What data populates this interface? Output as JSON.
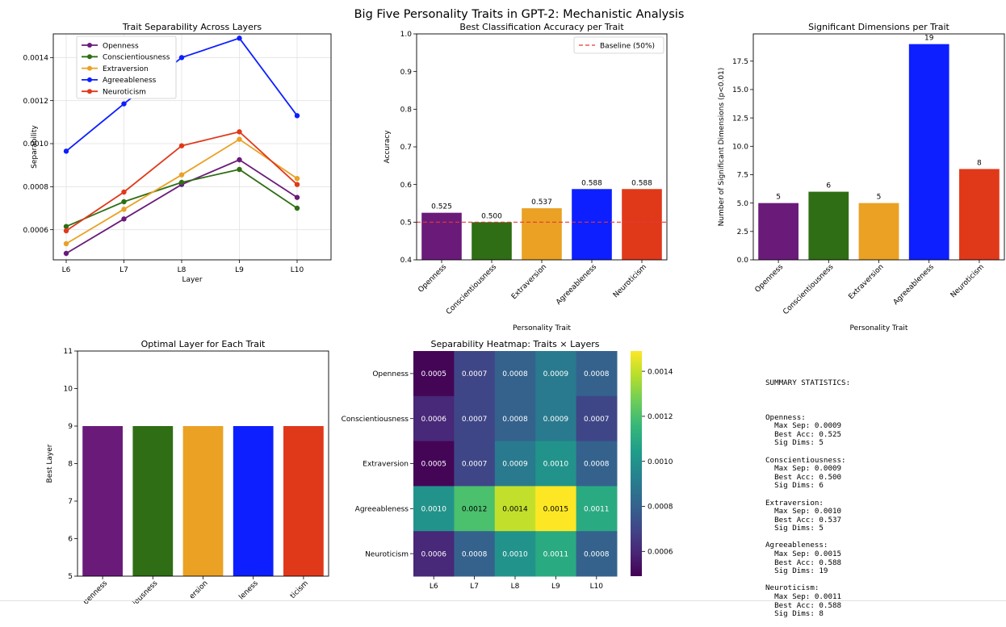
{
  "figure_title": "Big Five Personality Traits in GPT-2: Mechanistic Analysis",
  "traits": [
    "Openness",
    "Conscientiousness",
    "Extraversion",
    "Agreeableness",
    "Neuroticism"
  ],
  "colors": {
    "Openness": "#6a1b7a",
    "Conscientiousness": "#2f6e14",
    "Extraversion": "#eaa124",
    "Agreeableness": "#0d1fff",
    "Neuroticism": "#e0391a"
  },
  "chart_data": [
    {
      "id": "separability",
      "type": "line",
      "title": "Trait Separability Across Layers",
      "xlabel": "Layer",
      "ylabel": "Separability",
      "x": [
        "L6",
        "L7",
        "L8",
        "L9",
        "L10"
      ],
      "ylim": [
        0.00046,
        0.00151
      ],
      "yticks": [
        "0.0006",
        "0.0008",
        "0.0010",
        "0.0012",
        "0.0014"
      ],
      "legend": "top-left",
      "grid": true,
      "series": [
        {
          "name": "Openness",
          "values": [
            0.00049,
            0.00065,
            0.00081,
            0.000925,
            0.00075
          ]
        },
        {
          "name": "Conscientiousness",
          "values": [
            0.000615,
            0.00073,
            0.00082,
            0.00088,
            0.0007
          ]
        },
        {
          "name": "Extraversion",
          "values": [
            0.000535,
            0.000695,
            0.000855,
            0.00102,
            0.000838
          ]
        },
        {
          "name": "Agreeableness",
          "values": [
            0.000965,
            0.001185,
            0.0014,
            0.00149,
            0.00113
          ]
        },
        {
          "name": "Neuroticism",
          "values": [
            0.000595,
            0.000775,
            0.00099,
            0.001055,
            0.00081
          ]
        }
      ]
    },
    {
      "id": "accuracy",
      "type": "bar",
      "title": "Best Classification Accuracy per Trait",
      "xlabel": "Personality Trait",
      "ylabel": "Accuracy",
      "categories": [
        "Openness",
        "Conscientiousness",
        "Extraversion",
        "Agreeableness",
        "Neuroticism"
      ],
      "values": [
        0.525,
        0.5,
        0.537,
        0.588,
        0.588
      ],
      "labels": [
        "0.525",
        "0.500",
        "0.537",
        "0.588",
        "0.588"
      ],
      "ylim": [
        0.4,
        1.0
      ],
      "yticks": [
        "0.4",
        "0.5",
        "0.6",
        "0.7",
        "0.8",
        "0.9",
        "1.0"
      ],
      "baseline": {
        "value": 0.5,
        "label": "Baseline (50%)"
      },
      "legend": "top-right"
    },
    {
      "id": "sigdims",
      "type": "bar",
      "title": "Significant Dimensions per Trait",
      "xlabel": "Personality Trait",
      "ylabel": "Number of Significant Dimensions (p<0.01)",
      "categories": [
        "Openness",
        "Conscientiousness",
        "Extraversion",
        "Agreeableness",
        "Neuroticism"
      ],
      "values": [
        5,
        6,
        5,
        19,
        8
      ],
      "labels": [
        "5",
        "6",
        "5",
        "19",
        "8"
      ],
      "ylim": [
        0,
        19.9
      ],
      "yticks": [
        "0.0",
        "2.5",
        "5.0",
        "7.5",
        "10.0",
        "12.5",
        "15.0",
        "17.5"
      ]
    },
    {
      "id": "optlayer",
      "type": "bar",
      "title": "Optimal Layer for Each Trait",
      "ylabel": "Best Layer",
      "categories": [
        "Openness",
        "Conscientiousness",
        "Extraversion",
        "Agreeableness",
        "Neuroticism"
      ],
      "visible_tick_labels": [
        "penness",
        "iousness",
        "ersion",
        "leness",
        "ticism"
      ],
      "values": [
        9,
        9,
        9,
        9,
        9
      ],
      "ylim": [
        5,
        11
      ],
      "yticks": [
        "5",
        "6",
        "7",
        "8",
        "9",
        "10",
        "11"
      ]
    },
    {
      "id": "heatmap",
      "type": "heatmap",
      "title": "Separability Heatmap: Traits × Layers",
      "rows": [
        "Openness",
        "Conscientiousness",
        "Extraversion",
        "Agreeableness",
        "Neuroticism"
      ],
      "cols": [
        "L6",
        "L7",
        "L8",
        "L9",
        "L10"
      ],
      "values": [
        [
          0.0005,
          0.0007,
          0.0008,
          0.0009,
          0.0008
        ],
        [
          0.0006,
          0.0007,
          0.0008,
          0.0009,
          0.0007
        ],
        [
          0.0005,
          0.0007,
          0.0009,
          0.001,
          0.0008
        ],
        [
          0.001,
          0.0012,
          0.0014,
          0.0015,
          0.0011
        ],
        [
          0.0006,
          0.0008,
          0.001,
          0.0011,
          0.0008
        ]
      ],
      "labels": [
        [
          "0.0005",
          "0.0007",
          "0.0008",
          "0.0009",
          "0.0008"
        ],
        [
          "0.0006",
          "0.0007",
          "0.0008",
          "0.0009",
          "0.0007"
        ],
        [
          "0.0005",
          "0.0007",
          "0.0009",
          "0.0010",
          "0.0008"
        ],
        [
          "0.0010",
          "0.0012",
          "0.0014",
          "0.0015",
          "0.0011"
        ],
        [
          "0.0006",
          "0.0008",
          "0.0010",
          "0.0011",
          "0.0008"
        ]
      ],
      "vmin": 0.00049,
      "vmax": 0.00149,
      "colorbar_ticks": [
        "0.0006",
        "0.0008",
        "0.0010",
        "0.0012",
        "0.0014"
      ],
      "colormap": "viridis"
    }
  ],
  "summary": {
    "header": "SUMMARY STATISTICS:",
    "blocks": [
      {
        "name": "Openness:",
        "lines": [
          "  Max Sep: 0.0009",
          "  Best Acc: 0.525",
          "  Sig Dims: 5"
        ]
      },
      {
        "name": "Conscientiousness:",
        "lines": [
          "  Max Sep: 0.0009",
          "  Best Acc: 0.500",
          "  Sig Dims: 6"
        ]
      },
      {
        "name": "Extraversion:",
        "lines": [
          "  Max Sep: 0.0010",
          "  Best Acc: 0.537",
          "  Sig Dims: 5"
        ]
      },
      {
        "name": "Agreeableness:",
        "lines": [
          "  Max Sep: 0.0015",
          "  Best Acc: 0.588",
          "  Sig Dims: 19"
        ]
      },
      {
        "name": "Neuroticism:",
        "lines": [
          "  Max Sep: 0.0011",
          "  Best Acc: 0.588",
          "  Sig Dims: 8"
        ]
      }
    ]
  }
}
